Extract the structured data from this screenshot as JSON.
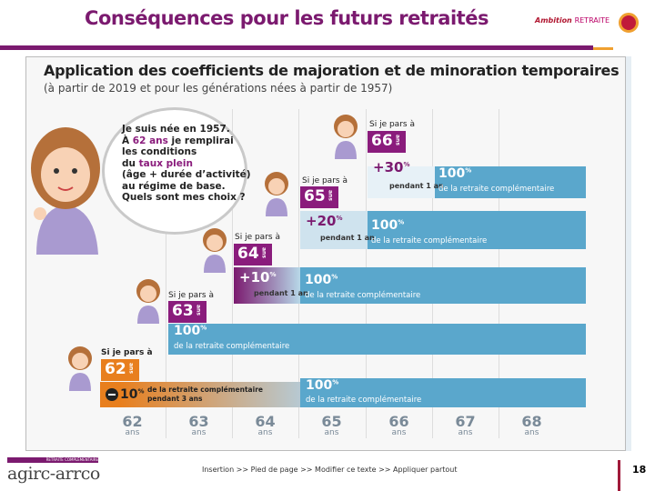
{
  "slide": {
    "title": "Conséquences pour les futurs retraités",
    "logo": {
      "bold": "Ambition",
      "rest": "RETRAITE"
    },
    "page_number": "18",
    "footer": "Insertion >> Pied de page >> Modifier ce texte >> Appliquer partout",
    "footer_logo": {
      "tag": "RETRAITE COMPLÉMENTAIRE",
      "name": "agirc-arrco"
    }
  },
  "infographic": {
    "title": "Application des coefficients de majoration et de minoration temporaires",
    "subtitle": "(à partir de 2019 et pour les générations nées à partir de 1957)",
    "bubble": {
      "l1": "Je suis née en 1957.",
      "l2a": "À ",
      "l2b": "62 ans",
      "l2c": " je remplirai",
      "l3": "les conditions",
      "l4a": "du ",
      "l4b": "taux plein",
      "l5": "(âge + durée d’activité)",
      "l6": "au régime de base.",
      "l7": "Quels sont mes choix ?"
    },
    "if_label": "Si je pars à",
    "ans": "ans",
    "pct_sym": "%",
    "full": "100",
    "full_text": "de la retraite complémentaire",
    "scenarios": [
      {
        "age": "66",
        "bonus": "+30",
        "duration": "pendant 1 an"
      },
      {
        "age": "65",
        "bonus": "+20",
        "duration": "pendant 1 an"
      },
      {
        "age": "64",
        "bonus": "+10",
        "duration": "pendant 1 an"
      },
      {
        "age": "63"
      },
      {
        "age": "62",
        "malus": "10",
        "malus_text": "de la retraite complémentaire pendant 3 ans"
      }
    ],
    "axis": [
      "62",
      "63",
      "64",
      "65",
      "66",
      "67",
      "68"
    ],
    "colors": {
      "purple": "#7b1a6f",
      "blue": "#5aa7cc",
      "orange": "#e87f1e"
    }
  }
}
